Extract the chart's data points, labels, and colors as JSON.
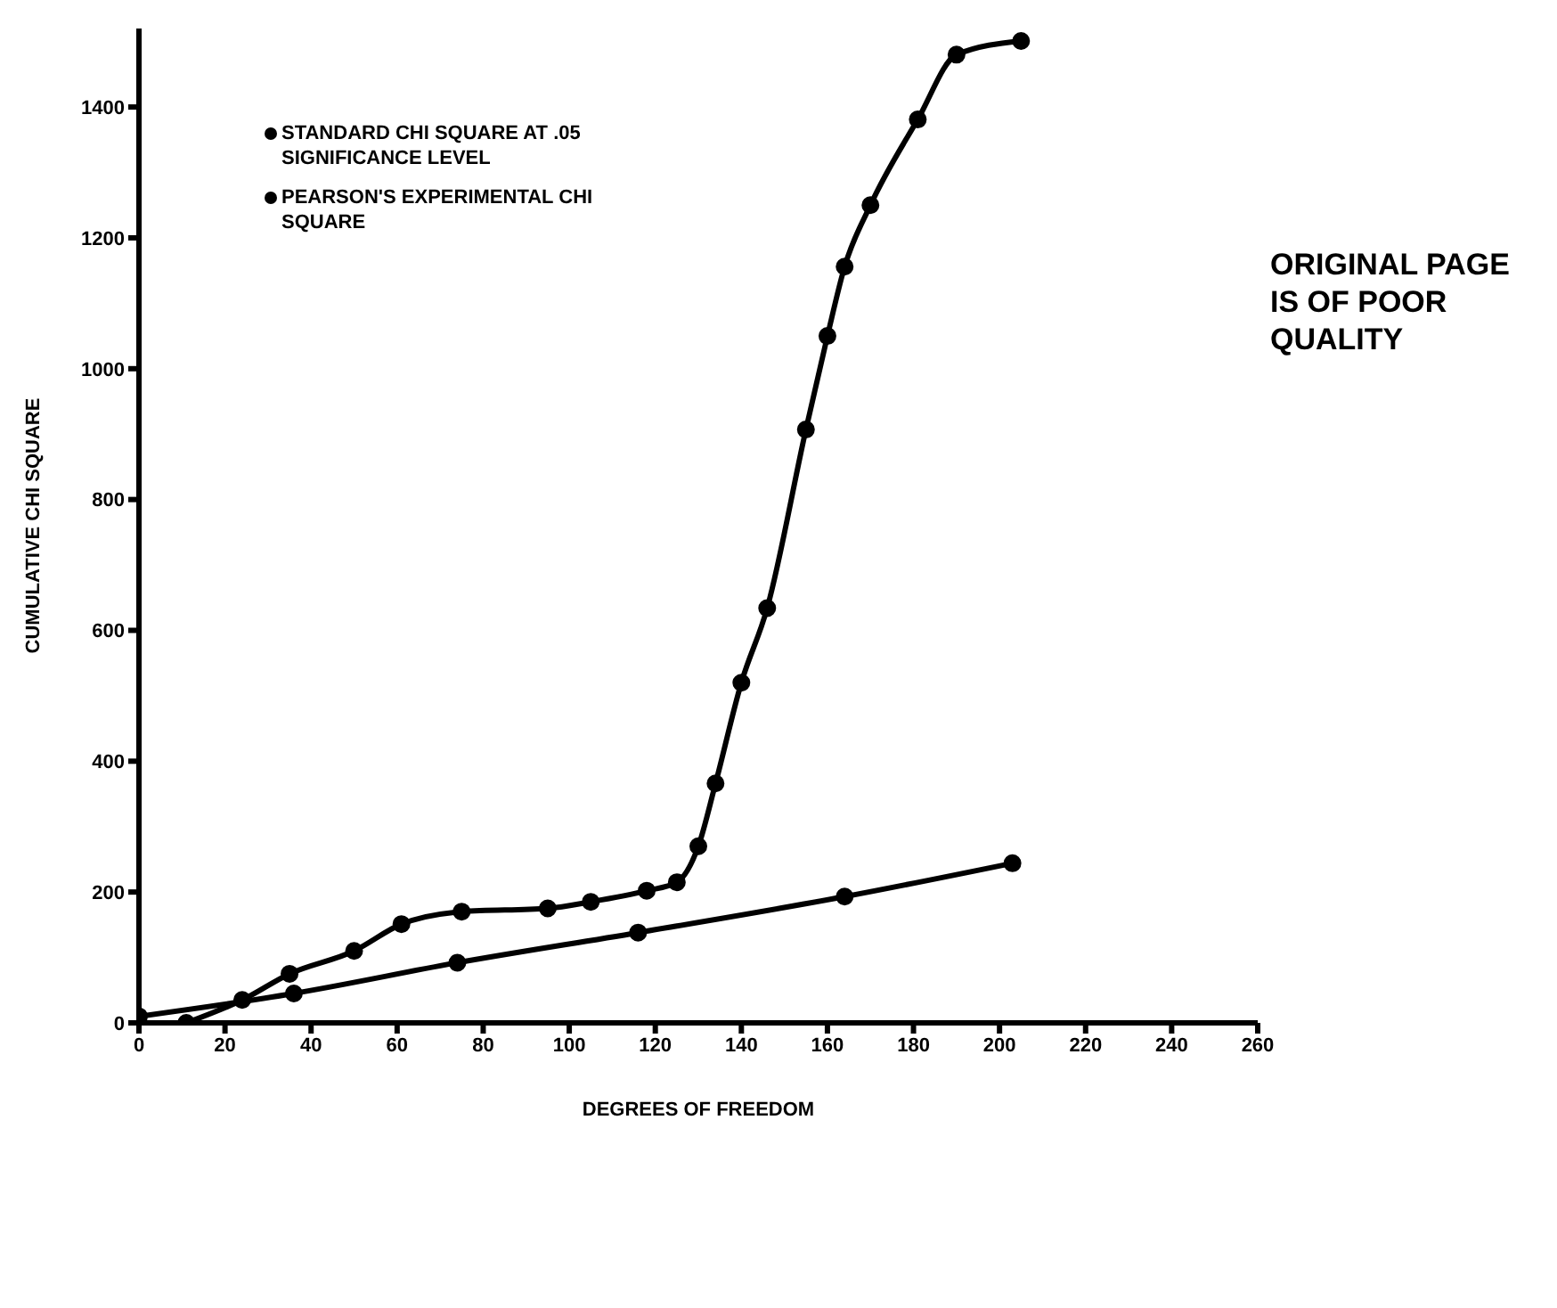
{
  "chart_data": {
    "type": "line",
    "xlabel": "DEGREES OF FREEDOM",
    "ylabel": "CUMULATIVE CHI SQUARE",
    "xlim": [
      0,
      260
    ],
    "xticks": [
      0,
      20,
      40,
      60,
      80,
      100,
      120,
      140,
      160,
      180,
      200,
      220,
      240,
      260
    ],
    "ylim": [
      0,
      1520
    ],
    "yticks": [
      0,
      200,
      400,
      600,
      800,
      1000,
      1200,
      1400
    ],
    "grid": false,
    "legend": "top left",
    "marker": "circle",
    "line_style": "solid",
    "annotations": [
      "ORIGINAL PAGE IS OF POOR QUALITY"
    ],
    "series": [
      {
        "name": "STANDARD CHI SQUARE AT .05 SIGNIFICANCE LEVEL",
        "color": "#000000",
        "x": [
          0,
          36,
          74,
          116,
          164,
          203
        ],
        "values": [
          10,
          45,
          92,
          138,
          193,
          244
        ]
      },
      {
        "name": "PEARSON'S EXPERIMENTAL CHI SQUARE",
        "color": "#000000",
        "x": [
          11,
          24,
          35,
          50,
          61,
          75,
          95,
          105,
          118,
          125,
          130,
          134,
          140,
          146,
          155,
          160,
          164,
          170,
          181,
          190,
          205
        ],
        "values": [
          0,
          35,
          75,
          110,
          151,
          170,
          175,
          185,
          202,
          215,
          270,
          366,
          520,
          634,
          907,
          1050,
          1156,
          1250,
          1381,
          1480,
          1501
        ]
      }
    ]
  }
}
